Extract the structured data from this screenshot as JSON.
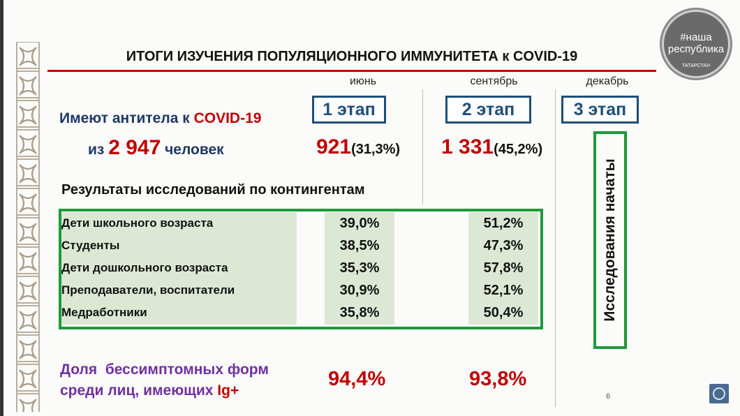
{
  "title": "ИТОГИ ИЗУЧЕНИЯ ПОПУЛЯЦИОННОГО ИММУНИТЕТА к COVID-19",
  "logo": {
    "line1": "#наша",
    "line2": "республика",
    "ring": "ТАТАРСТАН"
  },
  "months": [
    "июнь",
    "сентябрь",
    "декабрь"
  ],
  "stages": [
    "1 этап",
    "2 этап",
    "3 этап"
  ],
  "antibodies": {
    "line1_prefix": "Имеют антитела к ",
    "line1_highlight": "COVID-19",
    "line2_prefix": "из ",
    "total": "2 947",
    "line2_suffix": " человек",
    "stage1_count": "921",
    "stage1_pct": "(31,3%)",
    "stage2_count": "1 331",
    "stage2_pct": "(45,2%)"
  },
  "results_heading": "Результаты исследований по контингентам",
  "table": {
    "rows": [
      {
        "group": "Дети школьного возраста",
        "stage1": "39,0%",
        "stage2": "51,2%"
      },
      {
        "group": "Студенты",
        "stage1": "38,5%",
        "stage2": "47,3%"
      },
      {
        "group": "Дети дошкольного возраста",
        "stage1": "35,3%",
        "stage2": "57,8%"
      },
      {
        "group": "Преподаватели, воспитатели",
        "stage1": "30,9%",
        "stage2": "52,1%"
      },
      {
        "group": "Медработники",
        "stage1": "35,8%",
        "stage2": "50,4%"
      }
    ]
  },
  "stage3_status": "Исследования начаты",
  "asymptomatic": {
    "line1": "Доля  бессимптомных форм",
    "line2_prefix": "среди лиц, имеющих ",
    "line2_highlight": "Ig+",
    "stage1": "94,4%",
    "stage2": "93,8%"
  },
  "page_number": "6",
  "colors": {
    "red": "#c00000",
    "blue": "#1f3864",
    "green": "#1e9a3a",
    "purple": "#7030a0"
  }
}
